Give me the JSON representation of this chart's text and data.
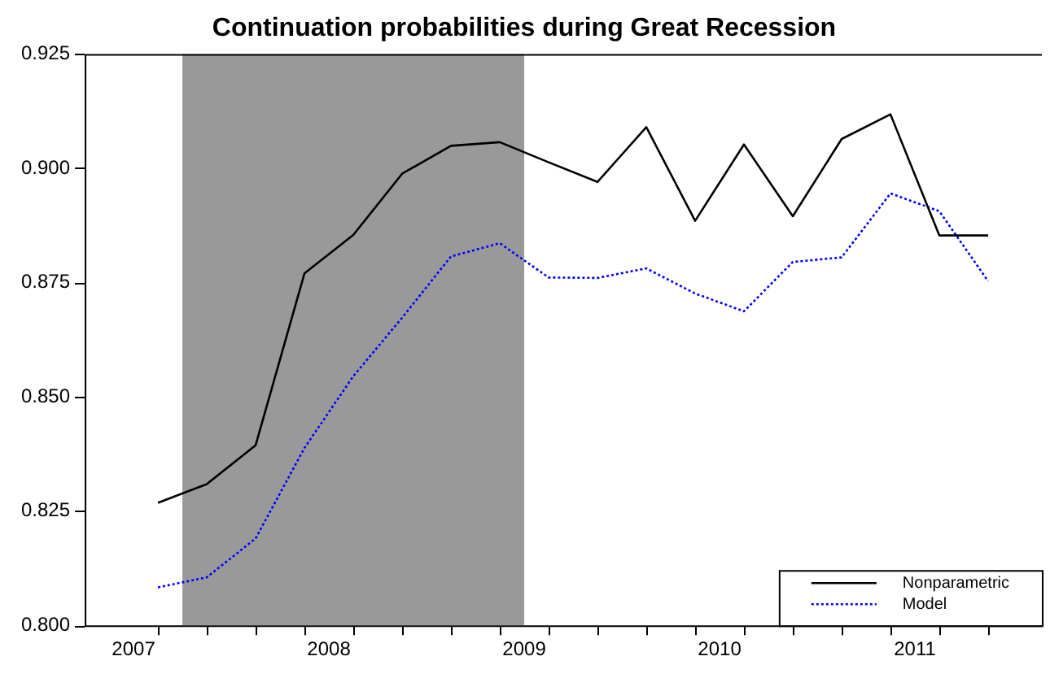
{
  "chart_data": {
    "type": "line",
    "title": "Continuation probabilities during Great Recession",
    "x": [
      2007.125,
      2007.375,
      2007.625,
      2007.875,
      2008.125,
      2008.375,
      2008.625,
      2008.875,
      2009.125,
      2009.375,
      2009.625,
      2009.875,
      2010.125,
      2010.375,
      2010.625,
      2010.875,
      2011.125,
      2011.375
    ],
    "series": [
      {
        "name": "Nonparametric",
        "color": "#000000",
        "line_style": "solid",
        "values": [
          0.8268,
          0.8309,
          0.8394,
          0.877,
          0.8854,
          0.8988,
          0.9049,
          0.9057,
          0.9013,
          0.897,
          0.909,
          0.8885,
          0.9052,
          0.8895,
          0.9064,
          0.9118,
          0.8853,
          0.8853
        ]
      },
      {
        "name": "Model",
        "color": "#0000ff",
        "line_style": "dotted",
        "values": [
          0.8083,
          0.8105,
          0.819,
          0.8388,
          0.8545,
          0.8673,
          0.8807,
          0.8836,
          0.8761,
          0.876,
          0.8781,
          0.8726,
          0.8687,
          0.8795,
          0.8805,
          0.8945,
          0.8906,
          0.8753
        ]
      }
    ],
    "xlim": [
      2006.75,
      2011.65
    ],
    "xticks": [
      {
        "value": 2007,
        "label": "2007"
      },
      {
        "value": 2008,
        "label": "2008"
      },
      {
        "value": 2009,
        "label": "2009"
      },
      {
        "value": 2010,
        "label": "2010"
      },
      {
        "value": 2011,
        "label": "2011"
      },
      {
        "value": 2007.125,
        "label": null
      },
      {
        "value": 2007.375,
        "label": null
      },
      {
        "value": 2007.625,
        "label": null
      },
      {
        "value": 2007.875,
        "label": null
      },
      {
        "value": 2008.125,
        "label": null
      },
      {
        "value": 2008.375,
        "label": null
      },
      {
        "value": 2008.625,
        "label": null
      },
      {
        "value": 2008.875,
        "label": null
      },
      {
        "value": 2009.125,
        "label": null
      },
      {
        "value": 2009.375,
        "label": null
      },
      {
        "value": 2009.625,
        "label": null
      },
      {
        "value": 2009.875,
        "label": null
      },
      {
        "value": 2010.125,
        "label": null
      },
      {
        "value": 2010.375,
        "label": null
      },
      {
        "value": 2010.625,
        "label": null
      },
      {
        "value": 2010.875,
        "label": null
      },
      {
        "value": 2011.125,
        "label": null
      },
      {
        "value": 2011.375,
        "label": null
      }
    ],
    "ylim": [
      0.8,
      0.925
    ],
    "yticks": [
      {
        "value": 0.8,
        "label": "0.800"
      },
      {
        "value": 0.825,
        "label": "0.825"
      },
      {
        "value": 0.85,
        "label": "0.850"
      },
      {
        "value": 0.875,
        "label": "0.875"
      },
      {
        "value": 0.9,
        "label": "0.900"
      },
      {
        "value": 0.925,
        "label": "0.925"
      }
    ],
    "bands": [
      {
        "axis": "x",
        "from": 2007.25,
        "to": 2009.0,
        "color": "#999999"
      }
    ],
    "grid": false,
    "legend": "bottom right",
    "marker": "none"
  }
}
